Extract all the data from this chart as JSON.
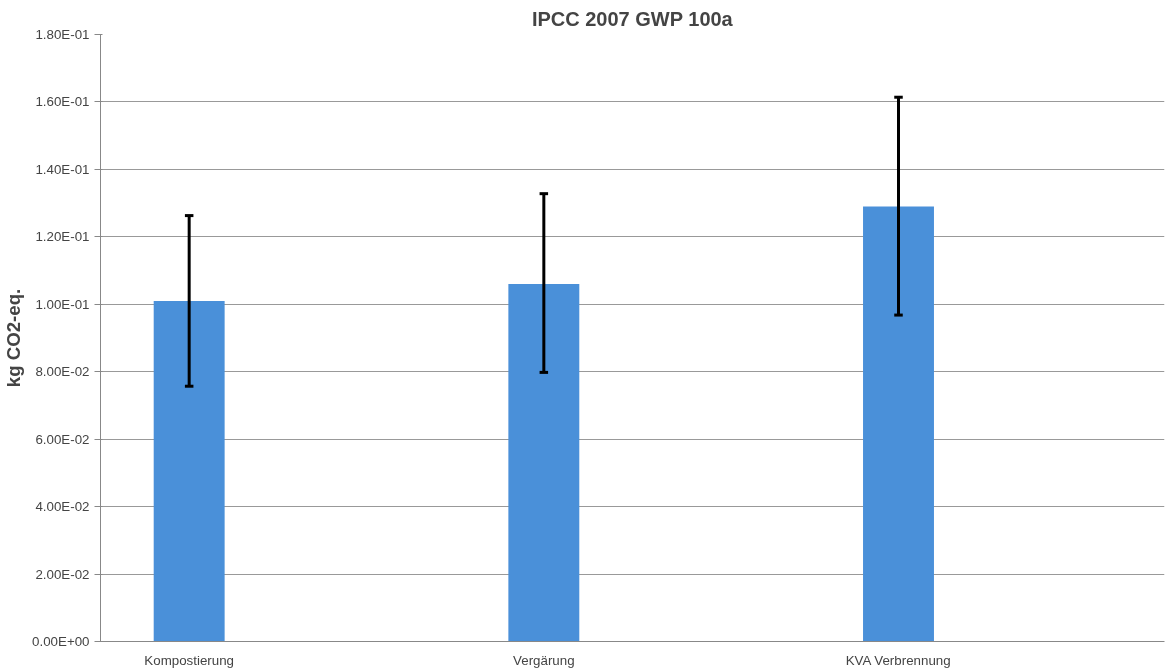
{
  "chart_data": {
    "type": "bar",
    "title": "IPCC 2007 GWP 100a",
    "ylabel": "kg CO2-eq.",
    "categories": [
      "Kompostierung",
      "Vergärung",
      "KVA Verbrennung"
    ],
    "values": [
      0.101,
      0.106,
      0.129
    ],
    "color": "#4a90d9",
    "errors": [
      [
        0.0757,
        0.1263
      ],
      [
        0.0798,
        0.1328
      ],
      [
        0.0968,
        0.1614
      ]
    ],
    "ylim": [
      0,
      0.18
    ],
    "yticks": [
      {
        "value": 0,
        "label": "0.00E+00"
      },
      {
        "value": 0.02,
        "label": "2.00E-02"
      },
      {
        "value": 0.04,
        "label": "4.00E-02"
      },
      {
        "value": 0.06,
        "label": "6.00E-02"
      },
      {
        "value": 0.08,
        "label": "8.00E-02"
      },
      {
        "value": 0.1,
        "label": "1.00E-01"
      },
      {
        "value": 0.12,
        "label": "1.20E-01"
      },
      {
        "value": 0.14,
        "label": "1.40E-01"
      },
      {
        "value": 0.16,
        "label": "1.60E-01"
      },
      {
        "value": 0.18,
        "label": "1.80E-01"
      }
    ],
    "grid": "y"
  }
}
